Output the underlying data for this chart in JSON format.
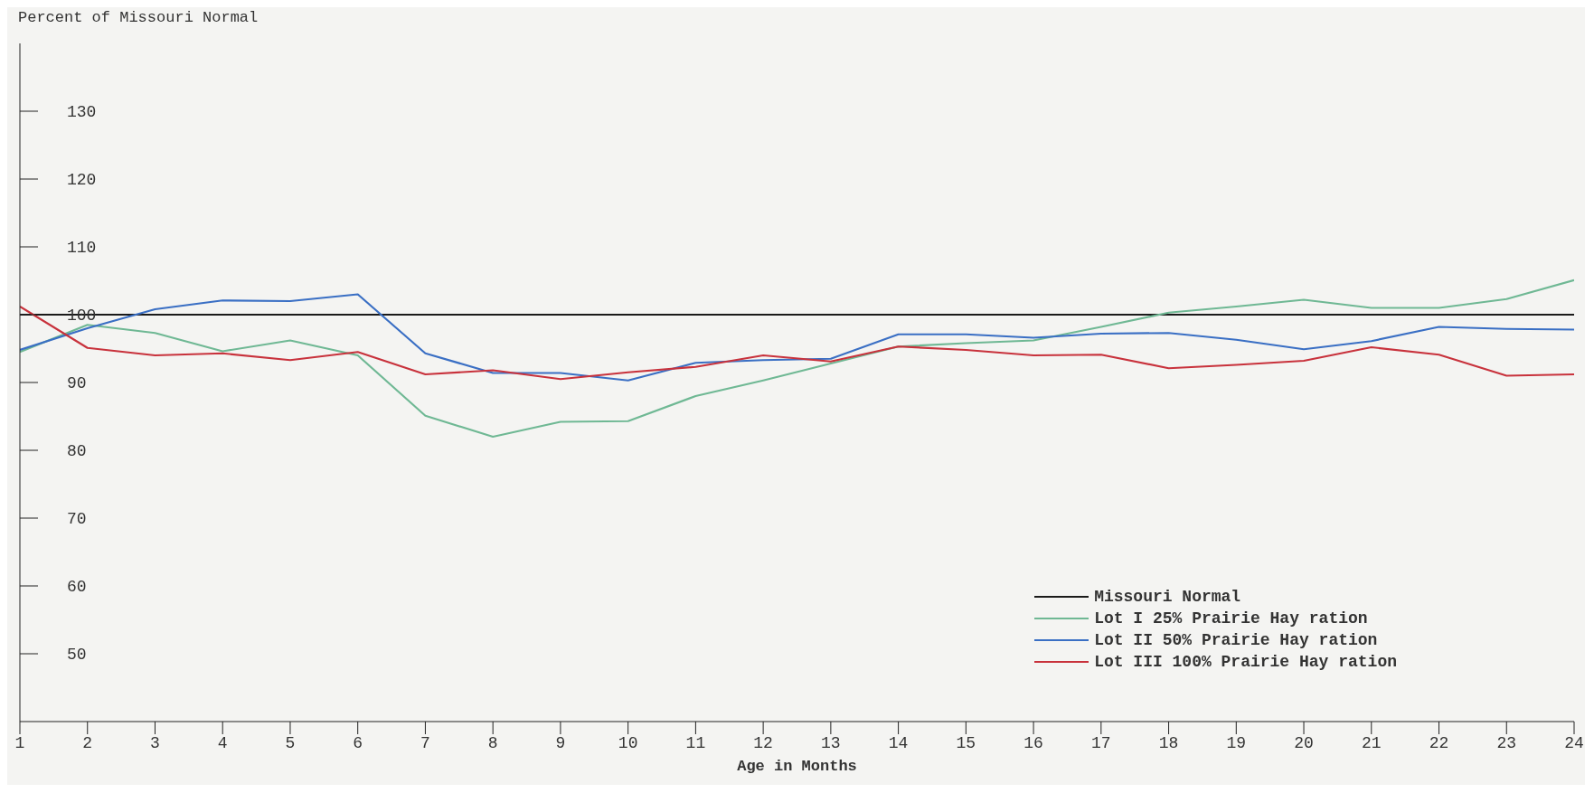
{
  "chart_data": {
    "type": "line",
    "ylabel": "Percent of Missouri Normal",
    "xlabel": "Age in Months",
    "x": [
      1,
      2,
      3,
      4,
      5,
      6,
      7,
      8,
      9,
      10,
      11,
      12,
      13,
      14,
      15,
      16,
      17,
      18,
      19,
      20,
      21,
      22,
      23,
      24
    ],
    "series": [
      {
        "name": "Missouri Normal",
        "color": "#1a1a1a",
        "values": [
          100,
          100,
          100,
          100,
          100,
          100,
          100,
          100,
          100,
          100,
          100,
          100,
          100,
          100,
          100,
          100,
          100,
          100,
          100,
          100,
          100,
          100,
          100,
          100
        ]
      },
      {
        "name": "Lot I 25% Prairie Hay ration",
        "color": "#6fb894",
        "values": [
          94.5,
          98.5,
          97.3,
          94.6,
          96.2,
          94,
          85.1,
          82,
          84.2,
          84.3,
          88,
          90.3,
          92.8,
          95.3,
          95.8,
          96.2,
          98.2,
          100.3,
          101.2,
          102.2,
          101,
          101,
          102.3,
          105.1
        ]
      },
      {
        "name": "Lot II 50% Prairie  Hay ration",
        "color": "#3a6fc4",
        "values": [
          94.8,
          98,
          100.8,
          102.1,
          102,
          103,
          94.3,
          91.4,
          91.4,
          90.3,
          92.9,
          93.3,
          93.5,
          97.1,
          97.1,
          96.6,
          97.2,
          97.3,
          96.3,
          94.9,
          96.1,
          98.2,
          97.9,
          97.8
        ]
      },
      {
        "name": "Lot III 100% Prairie Hay ration",
        "color": "#c8323c",
        "values": [
          101.2,
          95.1,
          94,
          94.3,
          93.3,
          94.5,
          91.2,
          91.8,
          90.5,
          91.5,
          92.3,
          94,
          93.1,
          95.3,
          94.8,
          94,
          94.1,
          92.1,
          92.6,
          93.2,
          95.2,
          94.1,
          91,
          91.2
        ]
      }
    ],
    "xlim": [
      1,
      24
    ],
    "xticks": [
      1,
      2,
      3,
      4,
      5,
      6,
      7,
      8,
      9,
      10,
      11,
      12,
      13,
      14,
      15,
      16,
      17,
      18,
      19,
      20,
      21,
      22,
      23,
      24
    ],
    "ylim": [
      40,
      140
    ],
    "yticks": [
      50,
      60,
      70,
      80,
      90,
      100,
      110,
      120,
      130
    ],
    "grid": false,
    "legend": "bottom right",
    "marker": "none",
    "line_style": "solid"
  }
}
